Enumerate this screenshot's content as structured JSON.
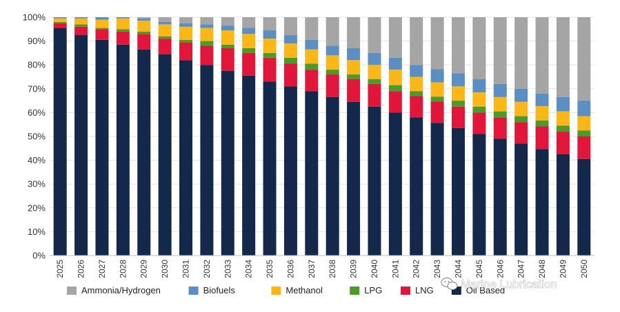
{
  "chart_data": {
    "type": "bar",
    "stacked": true,
    "y_format": "percent",
    "ylim": [
      0,
      100
    ],
    "yticks": [
      0,
      10,
      20,
      30,
      40,
      50,
      60,
      70,
      80,
      90,
      100
    ],
    "ytick_labels": [
      "0%",
      "10%",
      "20%",
      "30%",
      "40%",
      "50%",
      "60%",
      "70%",
      "80%",
      "90%",
      "100%"
    ],
    "grid": true,
    "legend_position": "bottom",
    "categories": [
      "2025",
      "2026",
      "2027",
      "2028",
      "2029",
      "2030",
      "2031",
      "2032",
      "2033",
      "2034",
      "2035",
      "2036",
      "2037",
      "2038",
      "2039",
      "2040",
      "2041",
      "2042",
      "2043",
      "2044",
      "2045",
      "2046",
      "2047",
      "2048",
      "2049",
      "2050"
    ],
    "series": [
      {
        "name": "Oil Based",
        "color": "#13284b",
        "values": [
          95.5,
          92.5,
          90.5,
          88.5,
          86.5,
          84.5,
          82,
          80,
          77.5,
          75.5,
          73,
          71,
          69,
          66.5,
          64.5,
          62.5,
          60,
          58,
          55.7,
          53.5,
          51,
          49,
          47,
          44.7,
          42.5,
          40.5
        ]
      },
      {
        "name": "LNG",
        "color": "#e0173a",
        "values": [
          2,
          3.5,
          4.5,
          5.5,
          6.5,
          6.5,
          7.5,
          8,
          9.5,
          9.5,
          10,
          9.5,
          9,
          9.5,
          9.5,
          9.5,
          9,
          9,
          9,
          9,
          9,
          9,
          9,
          9.5,
          9.5,
          9.5
        ]
      },
      {
        "name": "LPG",
        "color": "#4c9a2a",
        "values": [
          0.5,
          1,
          0.5,
          1,
          1,
          1,
          1,
          2,
          1.5,
          2,
          2,
          2.5,
          2.5,
          2,
          2,
          2,
          2.5,
          2,
          2,
          2.5,
          2.5,
          2.5,
          2.5,
          2.5,
          2.5,
          2.5
        ]
      },
      {
        "name": "Methanol",
        "color": "#fbb718",
        "values": [
          1.5,
          2.5,
          3.5,
          4.5,
          4.5,
          5,
          5.5,
          5.5,
          6,
          6,
          6,
          6,
          6,
          6,
          6,
          6,
          6.5,
          6,
          6,
          6,
          6,
          6,
          6,
          6,
          6,
          6
        ]
      },
      {
        "name": "Biofuels",
        "color": "#5b8ec1",
        "values": [
          0.5,
          0.5,
          1,
          0.5,
          1,
          1,
          1.5,
          1.5,
          2,
          2.5,
          3.5,
          3.5,
          4,
          4,
          5,
          5,
          5,
          5,
          5.5,
          5.5,
          5.5,
          5.5,
          5.5,
          5.3,
          6,
          6.5
        ]
      },
      {
        "name": "Ammonia/Hydrogen",
        "color": "#a5a5a5",
        "values": [
          0,
          0,
          0,
          0,
          0.5,
          2,
          2.5,
          3,
          3.5,
          4.5,
          5.5,
          7.5,
          9.5,
          12,
          13,
          15,
          17,
          20,
          21.8,
          23.5,
          26,
          28,
          30,
          32,
          33.5,
          35
        ]
      }
    ],
    "legend_order": [
      "Ammonia/Hydrogen",
      "Biofuels",
      "Methanol",
      "LPG",
      "LNG",
      "Oil Based"
    ]
  },
  "watermark": {
    "text": "Marine Lubrication",
    "icon": "wechat-logo-icon"
  }
}
